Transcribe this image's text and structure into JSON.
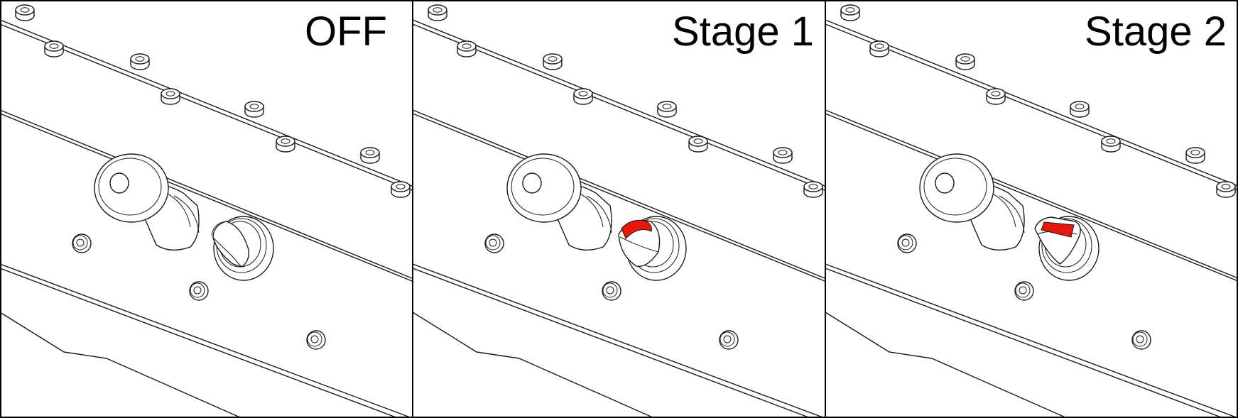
{
  "panels": [
    {
      "label": "OFF",
      "stage": 0
    },
    {
      "label": "Stage 1",
      "stage": 1
    },
    {
      "label": "Stage 2",
      "stage": 2
    }
  ],
  "colors": {
    "background": "#ffffff",
    "line": "#1a1a1a",
    "indicator": "#e8170d"
  }
}
